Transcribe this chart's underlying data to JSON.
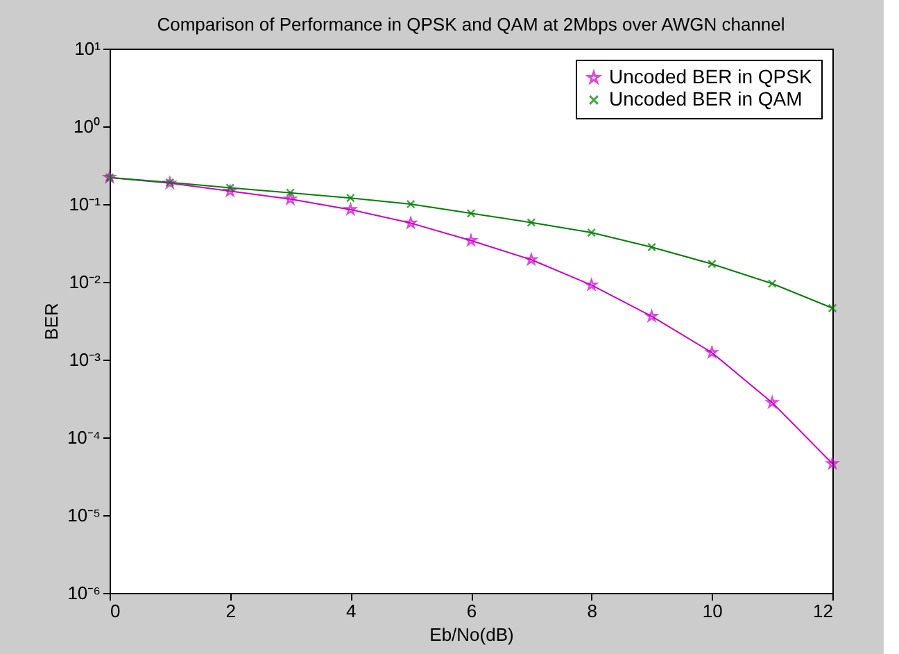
{
  "chart_data": {
    "type": "line",
    "title": "Comparison of Performance in QPSK and QAM at 2Mbps over AWGN channel",
    "xlabel": "Eb/No(dB)",
    "ylabel": "BER",
    "x": [
      0,
      1,
      2,
      3,
      4,
      5,
      6,
      7,
      8,
      9,
      10,
      11,
      12
    ],
    "series": [
      {
        "name": "Uncoded BER in QPSK",
        "color": "#cc00cc",
        "marker": "star",
        "values": [
          0.22,
          0.186,
          0.147,
          0.116,
          0.085,
          0.057,
          0.034,
          0.0193,
          0.0091,
          0.0036,
          0.00123,
          0.00028,
          4.6e-05
        ]
      },
      {
        "name": "Uncoded BER in QAM",
        "color": "#008000",
        "marker": "cross",
        "values": [
          0.22,
          0.19,
          0.162,
          0.14,
          0.12,
          0.1,
          0.076,
          0.058,
          0.043,
          0.028,
          0.017,
          0.0095,
          0.0046
        ]
      }
    ],
    "log": "y",
    "xlim": [
      0,
      12
    ],
    "xticks": [
      0,
      2,
      4,
      6,
      8,
      10,
      12
    ],
    "ylim": [
      1e-06,
      10
    ],
    "yticks": [
      {
        "value": 1e-06,
        "label": "10⁻⁶"
      },
      {
        "value": 1e-05,
        "label": "10⁻⁵"
      },
      {
        "value": 0.0001,
        "label": "10⁻⁴"
      },
      {
        "value": 0.001,
        "label": "10⁻³"
      },
      {
        "value": 0.01,
        "label": "10⁻²"
      },
      {
        "value": 0.1,
        "label": "10⁻¹"
      },
      {
        "value": 1,
        "label": "10⁰"
      },
      {
        "value": 10,
        "label": "10¹"
      }
    ],
    "grid": false,
    "legend": "top right",
    "line_style": "solid"
  }
}
